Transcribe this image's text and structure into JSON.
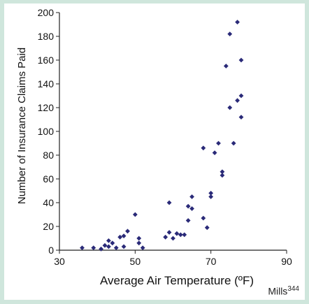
{
  "chart_data": {
    "type": "scatter",
    "title": "",
    "xlabel": "Average Air Temperature (ºF)",
    "ylabel": "Number of Insurance Claims Paid",
    "xlim": [
      30,
      90
    ],
    "ylim": [
      0,
      200
    ],
    "xticks": [
      30,
      50,
      70,
      90
    ],
    "yticks": [
      0,
      20,
      40,
      60,
      80,
      100,
      120,
      140,
      160,
      180,
      200
    ],
    "grid": false,
    "legend": "none",
    "marker_color": "#2a2a78",
    "series": [
      {
        "x": [
          36,
          39,
          41,
          42,
          43,
          43,
          44,
          45,
          46,
          47,
          47,
          48,
          50,
          51,
          51,
          52,
          58,
          59,
          59,
          60,
          61,
          62,
          63,
          64,
          64,
          65,
          65,
          68,
          68,
          69,
          70,
          70,
          71,
          72,
          73,
          73,
          74,
          75,
          75,
          76,
          77,
          77,
          78,
          78,
          78
        ],
        "y": [
          2,
          2,
          1,
          4,
          8,
          3,
          6,
          2,
          11,
          12,
          3,
          16,
          30,
          10,
          6,
          2,
          11,
          15,
          40,
          10,
          14,
          13,
          13,
          37,
          25,
          35,
          45,
          86,
          27,
          19,
          45,
          48,
          82,
          90,
          63,
          66,
          155,
          182,
          120,
          90,
          192,
          126,
          112,
          130,
          160
        ]
      }
    ]
  },
  "credit": {
    "name": "Mills",
    "ref": "344"
  }
}
